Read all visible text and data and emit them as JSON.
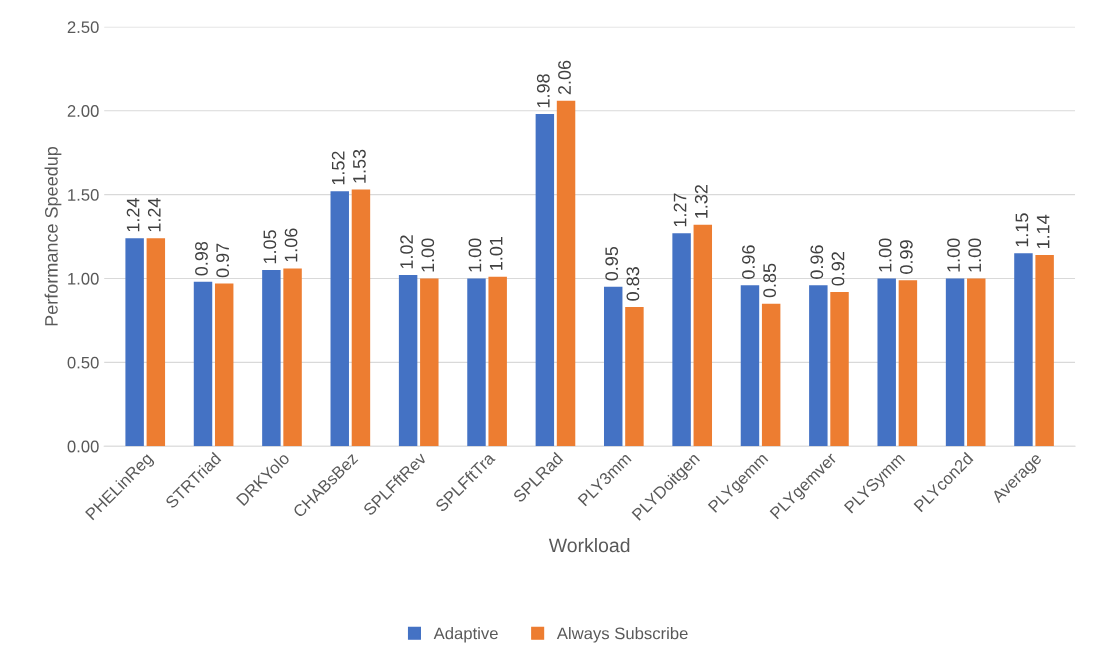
{
  "chart_data": {
    "type": "bar",
    "xlabel": "Workload",
    "ylabel": "Performance Speedup",
    "categories": [
      "PHELinReg",
      "STRTriad",
      "DRKYolo",
      "CHABsBez",
      "SPLFftRev",
      "SPLFftTra",
      "SPLRad",
      "PLY3mm",
      "PLYDoitgen",
      "PLYgemm",
      "PLYgemver",
      "PLYSymm",
      "PLYcon2d",
      "Average"
    ],
    "series": [
      {
        "name": "Adaptive",
        "color": "#4472c4",
        "values": [
          1.24,
          0.98,
          1.05,
          1.52,
          1.02,
          1.0,
          1.98,
          0.95,
          1.27,
          0.96,
          0.96,
          1.0,
          1.0,
          1.15
        ],
        "value_labels": [
          "1.24",
          "0.98",
          "1.05",
          "1.52",
          "1.02",
          "1.00",
          "1.98",
          "0.95",
          "1.27",
          "0.96",
          "0.96",
          "1.00",
          "1.00",
          "1.15"
        ]
      },
      {
        "name": "Always Subscribe",
        "color": "#ed7d31",
        "values": [
          1.24,
          0.97,
          1.06,
          1.53,
          1.0,
          1.01,
          2.06,
          0.83,
          1.32,
          0.85,
          0.92,
          0.99,
          1.0,
          1.14
        ],
        "value_labels": [
          "1.24",
          "0.97",
          "1.06",
          "1.53",
          "1.00",
          "1.01",
          "2.06",
          "0.83",
          "1.32",
          "0.85",
          "0.92",
          "0.99",
          "1.00",
          "1.14"
        ]
      }
    ],
    "ylim": [
      0,
      2.5
    ],
    "yticks": [
      {
        "value": 0,
        "label": "0.00"
      },
      {
        "value": 0.5,
        "label": "0.50"
      },
      {
        "value": 1,
        "label": "1.00"
      },
      {
        "value": 1.5,
        "label": "1.50"
      },
      {
        "value": 2,
        "label": "2.00"
      },
      {
        "value": 2.5,
        "label": "2.50"
      }
    ],
    "grid": "y",
    "legend": "bottom"
  }
}
